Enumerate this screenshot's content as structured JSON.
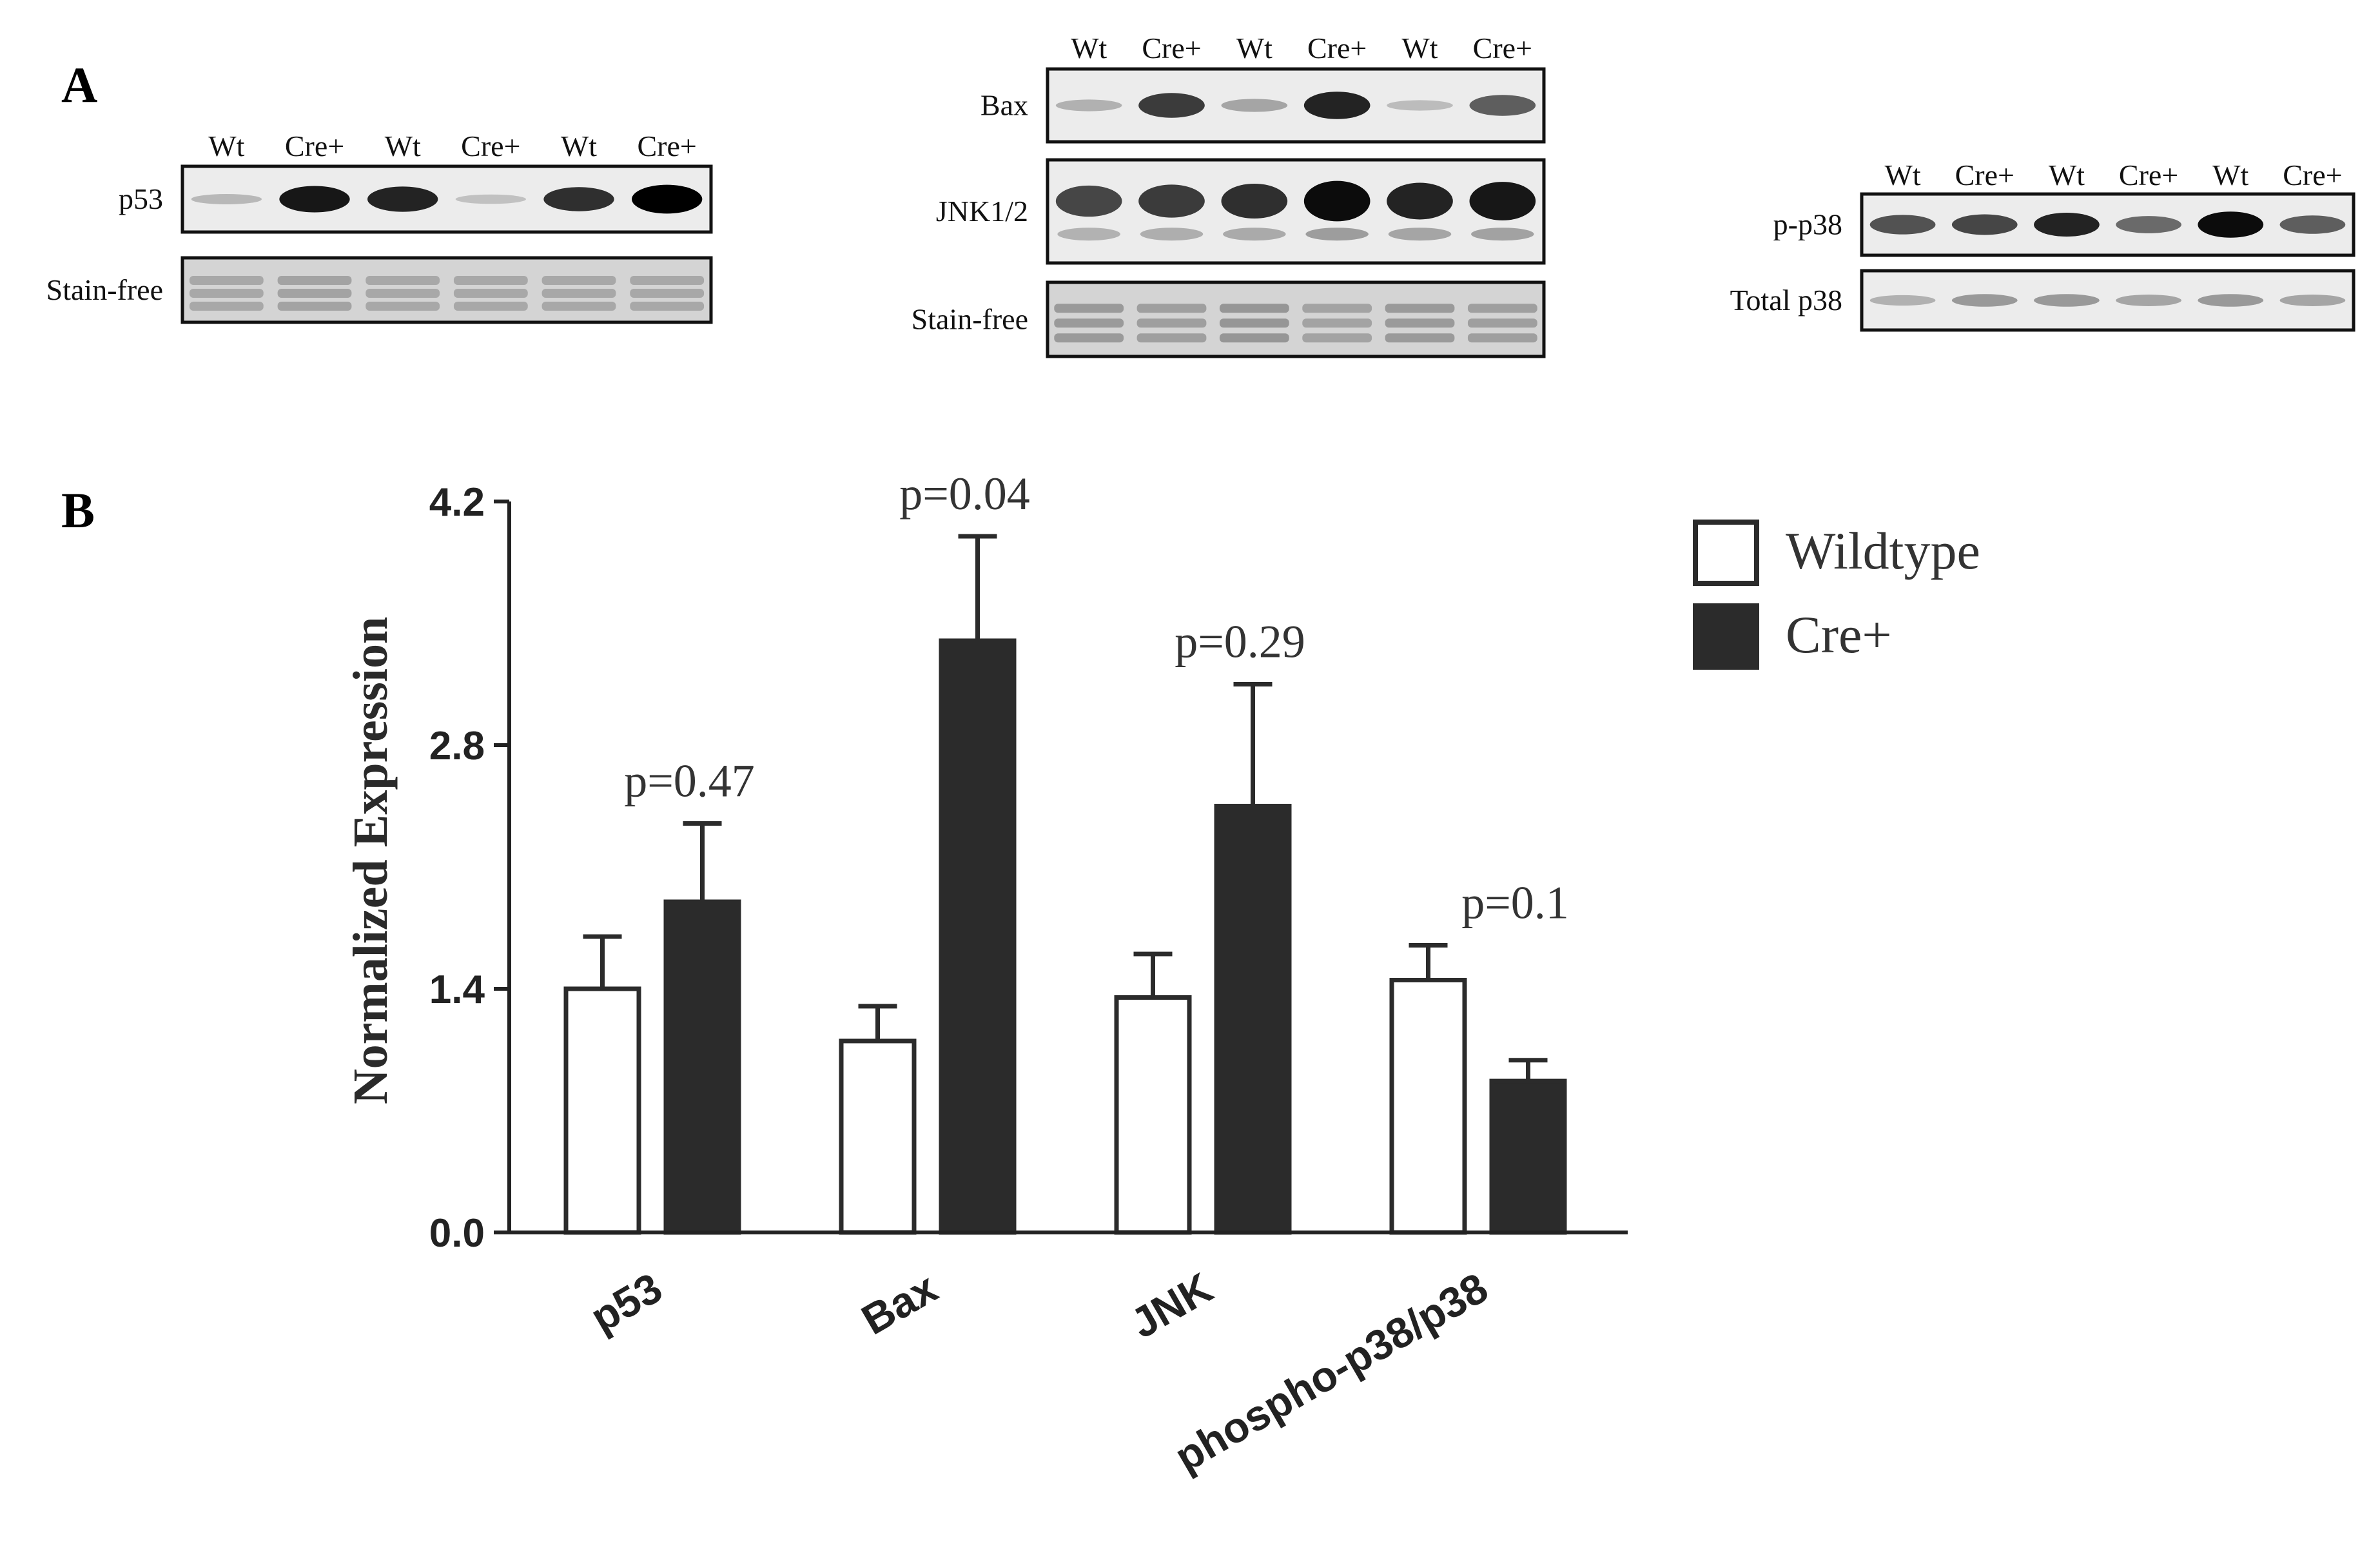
{
  "panels": {
    "a": "A",
    "b": "B"
  },
  "blots": [
    {
      "lane_labels": [
        "Wt",
        "Cre+",
        "Wt",
        "Cre+",
        "Wt",
        "Cre+"
      ],
      "rows": [
        {
          "label": "p53",
          "kind": "band",
          "intensities": [
            0.22,
            0.9,
            0.85,
            0.18,
            0.8,
            1.0
          ],
          "second_band": false
        },
        {
          "label": "Stain-free",
          "kind": "stain",
          "intensities": [
            0.5,
            0.55,
            0.5,
            0.5,
            0.5,
            0.5
          ],
          "second_band": false
        }
      ]
    },
    {
      "lane_labels": [
        "Wt",
        "Cre+",
        "Wt",
        "Cre+",
        "Wt",
        "Cre+"
      ],
      "rows": [
        {
          "label": "Bax",
          "kind": "band",
          "intensities": [
            0.25,
            0.75,
            0.3,
            0.85,
            0.2,
            0.6
          ],
          "second_band": false
        },
        {
          "label": "JNK1/2",
          "kind": "band",
          "intensities": [
            0.7,
            0.75,
            0.8,
            0.95,
            0.85,
            0.9
          ],
          "second_band": true
        },
        {
          "label": "Stain-free",
          "kind": "stain",
          "intensities": [
            0.65,
            0.6,
            0.7,
            0.55,
            0.65,
            0.6
          ],
          "second_band": false
        }
      ]
    },
    {
      "lane_labels": [
        "Wt",
        "Cre+",
        "Wt",
        "Cre+",
        "Wt",
        "Cre+"
      ],
      "rows": [
        {
          "label": "p-p38",
          "kind": "band",
          "intensities": [
            0.65,
            0.7,
            0.85,
            0.55,
            0.95,
            0.6
          ],
          "second_band": false
        },
        {
          "label": "Total p38",
          "kind": "band",
          "intensities": [
            0.25,
            0.35,
            0.35,
            0.3,
            0.35,
            0.3
          ],
          "second_band": false
        }
      ]
    }
  ],
  "chart_data": {
    "type": "bar",
    "categories": [
      "p53",
      "Bax",
      "JNK",
      "phospho-p38/p38"
    ],
    "series": [
      {
        "name": "Wildtype",
        "values": [
          1.4,
          1.1,
          1.35,
          1.45
        ],
        "errors": [
          0.3,
          0.2,
          0.25,
          0.2
        ],
        "color": "#ffffff"
      },
      {
        "name": "Cre+",
        "values": [
          1.9,
          3.4,
          2.45,
          0.87
        ],
        "errors": [
          0.45,
          0.6,
          0.7,
          0.12
        ],
        "color": "#2b2b2b"
      }
    ],
    "annotations": [
      "p=0.47",
      "p=0.04",
      "p=0.29",
      "p=0.1"
    ],
    "ylabel": "Normalized Expression",
    "xlabel": "",
    "ylim": [
      0,
      4.2
    ],
    "yticks": [
      "0.0",
      "1.4",
      "2.8",
      "4.2"
    ],
    "legend_position": "top-right",
    "grid": false
  }
}
